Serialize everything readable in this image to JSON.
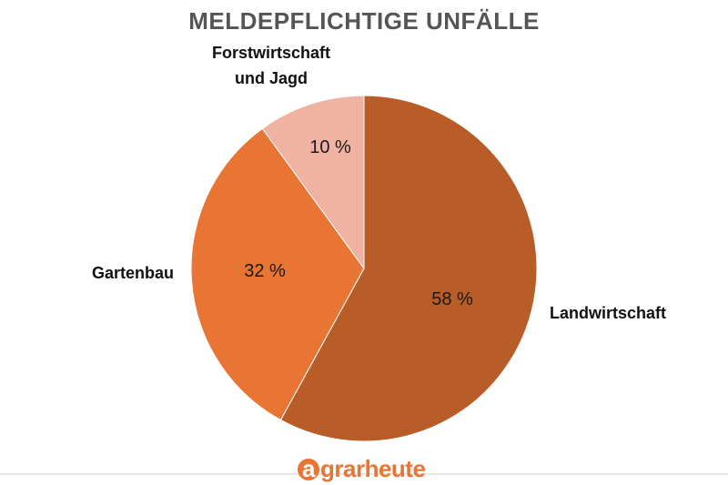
{
  "chart_data": {
    "type": "pie",
    "title": "MELDEPFLICHTIGE UNFÄLLE",
    "slices": [
      {
        "label": "Landwirtschaft",
        "value": 58,
        "value_label": "58 %",
        "color": "#b85c28"
      },
      {
        "label": "Gartenbau",
        "value": 32,
        "value_label": "32 %",
        "color": "#e87534"
      },
      {
        "label_lines": [
          "Forstwirtschaft",
          "und Jagd"
        ],
        "value": 10,
        "value_label": "10 %",
        "color": "#f0b3a3"
      }
    ],
    "start_angle_deg": 0,
    "direction": "clockwise"
  },
  "brand": {
    "logo_letter": "a",
    "logo_rest": "grarheute",
    "logo_color": "#e87534"
  }
}
